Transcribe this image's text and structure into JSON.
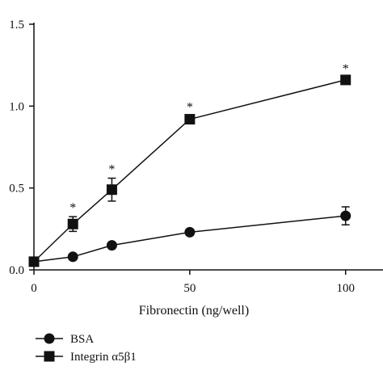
{
  "chart_data": {
    "type": "line",
    "title": "",
    "xlabel": "Fibronectin (ng/well)",
    "ylabel": "",
    "xlim": [
      0,
      112
    ],
    "ylim": [
      0,
      1.5
    ],
    "xticks": [
      0,
      50,
      100
    ],
    "xtick_labels": [
      "0",
      "50",
      "100"
    ],
    "yticks": [
      0,
      0.5,
      1.0,
      1.5
    ],
    "ytick_labels": [
      "0.0",
      "0.5",
      "1.0",
      "1.5"
    ],
    "grid": false,
    "legend_position": "bottom-left",
    "series": [
      {
        "name": "BSA",
        "marker": "circle",
        "color": "#111111",
        "x": [
          0,
          12.5,
          25,
          50,
          100
        ],
        "y": [
          0.05,
          0.08,
          0.15,
          0.23,
          0.33
        ],
        "err": [
          0,
          0,
          0,
          0,
          0.055
        ]
      },
      {
        "name": "Integrin α5β1",
        "marker": "square",
        "color": "#111111",
        "x": [
          0,
          12.5,
          25,
          50,
          100
        ],
        "y": [
          0.05,
          0.28,
          0.49,
          0.92,
          1.16
        ],
        "err": [
          0,
          0.045,
          0.07,
          0.02,
          0.015
        ],
        "annotations": [
          "",
          "*",
          "*",
          "*",
          "*"
        ]
      }
    ]
  }
}
